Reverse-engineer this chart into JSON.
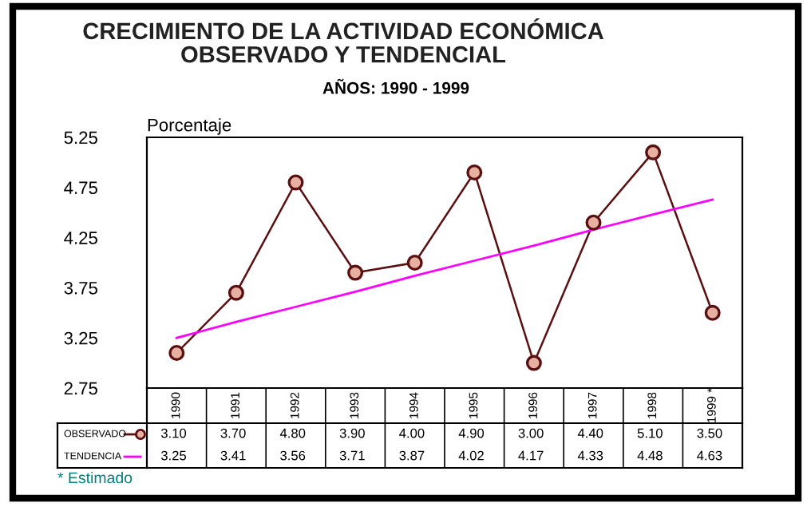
{
  "chart_data": {
    "type": "line",
    "title": "CRECIMIENTO DE LA ACTIVIDAD ECONÓMICA\nOBSERVADO Y TENDENCIAL",
    "subtitle": "AÑOS: 1990 - 1999",
    "ylabel": "Porcentaje",
    "categories": [
      "1990",
      "1991",
      "1992",
      "1993",
      "1994",
      "1995",
      "1996",
      "1997",
      "1998",
      "1999 *"
    ],
    "series": [
      {
        "name": "OBSERVADO",
        "color": "#5a1010",
        "marker": "circle",
        "values": [
          3.1,
          3.7,
          4.8,
          3.9,
          4.0,
          4.9,
          3.0,
          4.4,
          5.1,
          3.5
        ],
        "value_labels": [
          "3.10",
          "3.70",
          "4.80",
          "3.90",
          "4.00",
          "4.90",
          "3.00",
          "4.40",
          "5.10",
          "3.50"
        ]
      },
      {
        "name": "TENDENCIA",
        "color": "#ff00ff",
        "marker": "none",
        "values": [
          3.25,
          3.41,
          3.56,
          3.71,
          3.87,
          4.02,
          4.17,
          4.33,
          4.48,
          4.63
        ],
        "value_labels": [
          "3.25",
          "3.41",
          "3.56",
          "3.71",
          "3.87",
          "4.02",
          "4.17",
          "4.33",
          "4.48",
          "4.63"
        ]
      }
    ],
    "ylim": [
      2.75,
      5.25
    ],
    "yticks": [
      2.75,
      3.25,
      3.75,
      4.25,
      4.75,
      5.25
    ],
    "grid": false,
    "legend": "bottom left",
    "annotations": [
      "* Estimado"
    ]
  }
}
